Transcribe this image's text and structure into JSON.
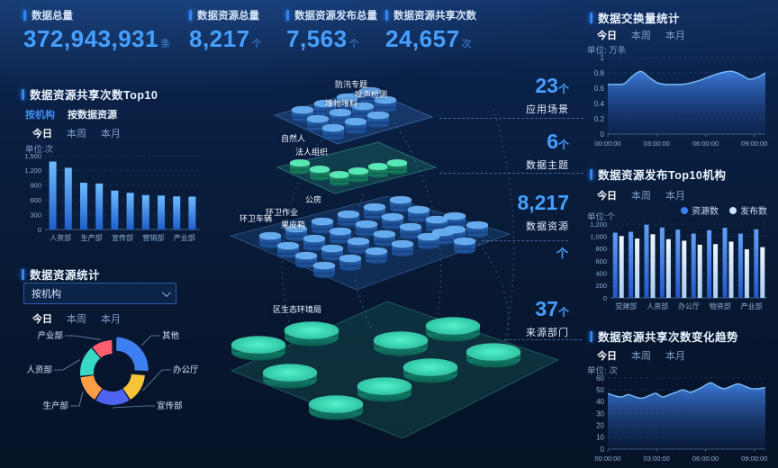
{
  "time_tabs": {
    "today": "今日",
    "week": "本周",
    "month": "本月"
  },
  "kpis": [
    {
      "title": "数据总量",
      "value": "372,943,931",
      "unit": "条"
    },
    {
      "title": "数据资源总量",
      "value": "8,217",
      "unit": "个"
    },
    {
      "title": "数据资源发布总量",
      "value": "7,563",
      "unit": "个"
    },
    {
      "title": "数据资源共享次数",
      "value": "24,657",
      "unit": "次"
    }
  ],
  "panels": {
    "share_top10": {
      "title": "数据资源共享次数Top10",
      "subtabs": [
        "按机构",
        "按数据资源"
      ],
      "unit": "单位:次"
    },
    "resource_stats": {
      "title": "数据资源统计",
      "dropdown_value": "按机构"
    },
    "exchange": {
      "title": "数据交换量统计",
      "unit": "单位: 万条"
    },
    "publish_top10": {
      "title": "数据资源发布Top10机构",
      "unit": "单位:个",
      "legend": [
        {
          "label": "资源数",
          "color": "#3D7FF0"
        },
        {
          "label": "发布数",
          "color": "#CFE6FF"
        }
      ]
    },
    "share_trend": {
      "title": "数据资源共享次数变化趋势",
      "unit": "单位: 次"
    }
  },
  "center": {
    "labels": [
      "防汛专题",
      "噪声检测",
      "堆物堆料",
      "自然人",
      "法人组织",
      "公房",
      "环卫作业",
      "环卫车辆",
      "果皮箱",
      "区生态环境局"
    ],
    "stats": [
      {
        "value": "23",
        "unit": "个",
        "label": "应用场景"
      },
      {
        "value": "6",
        "unit": "个",
        "label": "数据主题"
      },
      {
        "value": "8,217",
        "unit": "个",
        "label": "数据资源"
      },
      {
        "value": "37",
        "unit": "个",
        "label": "来源部门"
      }
    ]
  },
  "colors": {
    "accent": "#2F86F6",
    "value_blue": "#46A0FF",
    "bar_top": "#6CBBFF",
    "bar_bottom": "#1E5ECC",
    "area_fill": "#3E7EE0",
    "teal_disc": "#3FE8C0",
    "green_cyl": "#35D6A0",
    "blue_cyl": "#2E77C8"
  },
  "chart_data": [
    {
      "id": "exchange_volume",
      "type": "area",
      "title": "数据交换量统计",
      "ylabel": "单位: 万条",
      "ylim": [
        0,
        1
      ],
      "yticks": [
        0,
        0.2,
        0.4,
        0.6,
        0.8,
        1
      ],
      "x_ticks": [
        "00:00:00",
        "03:00:00",
        "06:00:00",
        "09:00:00"
      ],
      "grid": true,
      "legend_position": "none",
      "values": [
        0.65,
        0.65,
        0.66,
        0.76,
        0.82,
        0.74,
        0.67,
        0.65,
        0.65,
        0.65,
        0.67,
        0.7,
        0.74,
        0.78,
        0.81,
        0.82,
        0.78,
        0.72,
        0.74,
        0.8
      ]
    },
    {
      "id": "share_top10",
      "type": "bar",
      "title": "数据资源共享次数Top10",
      "ylabel": "单位:次",
      "ylim": [
        0,
        1500
      ],
      "yticks": [
        0,
        300,
        600,
        900,
        1200,
        1500
      ],
      "x_ticks": [
        "人资部",
        "生产部",
        "宣传部",
        "营销部",
        "产业部"
      ],
      "grid": true,
      "values": [
        1380,
        1255,
        950,
        935,
        790,
        745,
        700,
        690,
        672,
        668
      ]
    },
    {
      "id": "publish_top10",
      "type": "bar",
      "title": "数据资源发布Top10机构",
      "ylabel": "单位:个",
      "ylim": [
        0,
        1200
      ],
      "yticks": [
        0,
        200,
        400,
        600,
        800,
        1000,
        1200
      ],
      "x_ticks": [
        "党建部",
        "人资部",
        "办公厅",
        "物资部",
        "产业部"
      ],
      "grid": true,
      "legend_position": "top-right",
      "series": [
        {
          "name": "资源数",
          "color": "#3D7FF0",
          "values": [
            1060,
            1075,
            1190,
            1145,
            1110,
            1045,
            1100,
            1140,
            1045,
            1115
          ]
        },
        {
          "name": "发布数",
          "color": "#CFE6FF",
          "values": [
            1005,
            965,
            1035,
            955,
            930,
            865,
            875,
            915,
            790,
            825
          ]
        }
      ]
    },
    {
      "id": "share_trend",
      "type": "area",
      "title": "数据资源共享次数变化趋势",
      "ylabel": "单位: 次",
      "ylim": [
        0,
        60
      ],
      "yticks": [
        0,
        10,
        20,
        30,
        40,
        50,
        60
      ],
      "x_ticks": [
        "00:00:00",
        "03:00:00",
        "06:00:00",
        "09:00:00"
      ],
      "grid": true,
      "values": [
        47,
        45,
        44,
        46,
        44,
        43,
        45,
        47,
        44,
        46,
        48,
        50,
        48,
        50,
        53,
        56,
        53,
        51,
        53,
        55,
        53,
        51,
        51,
        52
      ]
    },
    {
      "id": "org_distribution",
      "type": "pie",
      "title": "数据资源统计(按机构)",
      "slices": [
        {
          "label": "其他",
          "value": 26,
          "color": "#3D7FF0",
          "exploded": true
        },
        {
          "label": "办公厅",
          "value": 15,
          "color": "#F6C438"
        },
        {
          "label": "宣传部",
          "value": 18,
          "color": "#4E63EE"
        },
        {
          "label": "生产部",
          "value": 14,
          "color": "#FF9D45"
        },
        {
          "label": "人资部",
          "value": 16,
          "color": "#38D8C5"
        },
        {
          "label": "产业部",
          "value": 11,
          "color": "#FF5E6E"
        }
      ]
    }
  ]
}
